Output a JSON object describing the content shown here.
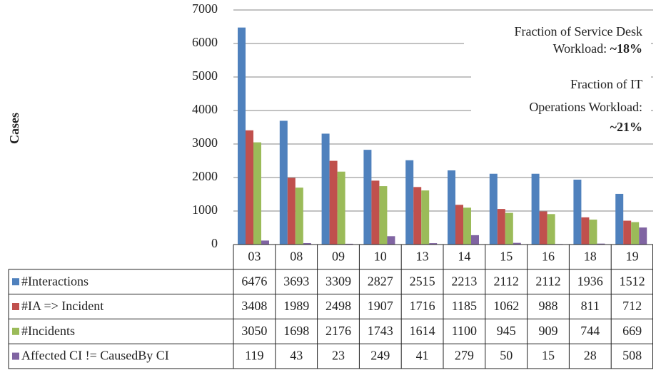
{
  "chart_data": {
    "type": "bar",
    "ylabel": "Cases",
    "categories": [
      "03",
      "08",
      "09",
      "10",
      "13",
      "14",
      "15",
      "16",
      "18",
      "19"
    ],
    "series": [
      {
        "name": "#Interactions",
        "color": "#4f81bd",
        "values": [
          6476,
          3693,
          3309,
          2827,
          2515,
          2213,
          2112,
          2112,
          1936,
          1512
        ]
      },
      {
        "name": "#IA => Incident",
        "color": "#c0504d",
        "values": [
          3408,
          1989,
          2498,
          1907,
          1716,
          1185,
          1062,
          988,
          811,
          712
        ]
      },
      {
        "name": "#Incidents",
        "color": "#9bbb59",
        "values": [
          3050,
          1698,
          2176,
          1743,
          1614,
          1100,
          945,
          909,
          744,
          669
        ]
      },
      {
        "name": "Affected CI != CausedBy CI",
        "color": "#8064a2",
        "values": [
          119,
          43,
          23,
          249,
          41,
          279,
          50,
          15,
          28,
          508
        ]
      }
    ],
    "ylim": [
      0,
      7000
    ],
    "yticks": [
      0,
      1000,
      2000,
      3000,
      4000,
      5000,
      6000,
      7000
    ],
    "grid": true,
    "annotations": [
      {
        "lines": [
          "Fraction of Service Desk",
          "Workload:"
        ],
        "highlight": "~18%"
      },
      {
        "lines": [
          "Fraction of IT",
          "Operations Workload:"
        ],
        "highlight": "~21%"
      }
    ]
  }
}
